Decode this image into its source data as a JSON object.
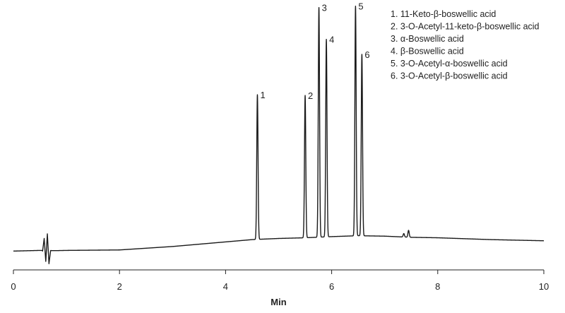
{
  "chart_data": {
    "type": "line",
    "title": "",
    "xlabel": "Min",
    "ylabel": "",
    "xlim": [
      0,
      10
    ],
    "ylim": [
      0,
      100
    ],
    "xticks": [
      0,
      2,
      4,
      6,
      8,
      10
    ],
    "tick_labels": [
      "0",
      "2",
      "4",
      "6",
      "8",
      "10"
    ],
    "line_color": "#1a1a1a",
    "grid": false,
    "legend_position": "top-right",
    "baseline": {
      "x": [
        0,
        0.5,
        0.8,
        1.0,
        2.0,
        3.0,
        4.0,
        4.5,
        5.0,
        5.5,
        6.0,
        6.5,
        7.0,
        7.5,
        8.0,
        9.0,
        10.0
      ],
      "y": [
        0.5,
        0.8,
        0.7,
        0.8,
        1.0,
        2.5,
        4.5,
        5.5,
        6.0,
        6.3,
        6.8,
        7.2,
        7.0,
        6.5,
        6.3,
        5.5,
        5.0
      ]
    },
    "artifact": {
      "x": [
        0.55,
        0.58,
        0.61,
        0.64,
        0.67,
        0.7
      ],
      "y": [
        0.5,
        6,
        -4,
        8,
        -5,
        0.5
      ]
    },
    "minor_peaks": [
      {
        "x": 7.36,
        "height": 1.5,
        "width": 0.012
      },
      {
        "x": 7.45,
        "height": 3,
        "width": 0.012
      }
    ],
    "peaks": [
      {
        "label": "1",
        "x": 4.6,
        "height": 63,
        "width": 0.012
      },
      {
        "label": "2",
        "x": 5.5,
        "height": 62,
        "width": 0.012
      },
      {
        "label": "3",
        "x": 5.76,
        "height": 100,
        "width": 0.012
      },
      {
        "label": "4",
        "x": 5.9,
        "height": 86,
        "width": 0.012
      },
      {
        "label": "5",
        "x": 6.45,
        "height": 100,
        "width": 0.012
      },
      {
        "label": "6",
        "x": 6.57,
        "height": 79,
        "width": 0.012
      }
    ],
    "legend": [
      "1.  11-Keto-β-boswellic acid",
      "2.  3-O-Acetyl-11-keto-β-boswellic acid",
      "3.  α-Boswellic acid",
      "4.  β-Boswellic acid",
      "5.  3-O-Acetyl-α-boswellic acid",
      "6.  3-O-Acetyl-β-boswellic acid"
    ]
  }
}
